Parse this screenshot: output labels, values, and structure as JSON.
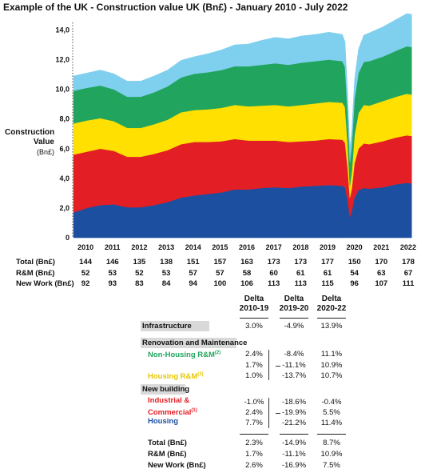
{
  "title": "Example of the UK - Construction value UK (Bn£) - January 2010 - July 2022",
  "chart_data": {
    "type": "area",
    "title": "Example of the UK - Construction value UK (Bn£) - January 2010 - July 2022",
    "ylabel": "Construction Value (Bn£)",
    "ylim": [
      0,
      14.4
    ],
    "yticks": [
      "0",
      "2,0",
      "4,0",
      "6,0",
      "8,0",
      "10,0",
      "12,0",
      "14,0"
    ],
    "xticks": [
      "2010",
      "2011",
      "2012",
      "2013",
      "2014",
      "2015",
      "2016",
      "2017",
      "2018",
      "2019",
      "2020",
      "2021",
      "2022"
    ],
    "stacked": true,
    "x": [
      2010.0,
      2010.5,
      2011.0,
      2011.5,
      2012.0,
      2012.5,
      2013.0,
      2013.5,
      2014.0,
      2014.5,
      2015.0,
      2015.5,
      2016.0,
      2016.5,
      2017.0,
      2017.5,
      2018.0,
      2018.5,
      2019.0,
      2019.5,
      2020.0,
      2020.1,
      2020.2,
      2020.28,
      2020.35,
      2020.45,
      2020.6,
      2020.8,
      2021.0,
      2021.5,
      2022.0,
      2022.4,
      2022.58
    ],
    "series": [
      {
        "color": "#1d4fa0",
        "values": [
          1.7,
          2.0,
          2.2,
          2.25,
          2.05,
          2.05,
          2.2,
          2.4,
          2.7,
          2.85,
          2.95,
          3.05,
          3.25,
          3.25,
          3.35,
          3.4,
          3.35,
          3.45,
          3.5,
          3.55,
          3.5,
          3.4,
          2.5,
          1.4,
          1.8,
          2.7,
          3.2,
          3.35,
          3.3,
          3.4,
          3.6,
          3.7,
          3.65
        ]
      },
      {
        "color": "#e31e24",
        "values": [
          3.9,
          3.8,
          3.8,
          3.6,
          3.4,
          3.4,
          3.45,
          3.5,
          3.6,
          3.6,
          3.5,
          3.45,
          3.4,
          3.3,
          3.2,
          3.15,
          3.1,
          3.05,
          3.05,
          3.1,
          3.1,
          3.0,
          2.2,
          1.3,
          1.5,
          2.3,
          2.8,
          3.0,
          3.0,
          3.1,
          3.15,
          3.2,
          3.2
        ]
      },
      {
        "color": "#ffe000",
        "values": [
          2.1,
          2.1,
          2.05,
          2.0,
          1.95,
          1.95,
          2.0,
          2.05,
          2.15,
          2.15,
          2.2,
          2.25,
          2.3,
          2.3,
          2.35,
          2.4,
          2.4,
          2.45,
          2.5,
          2.5,
          2.5,
          2.4,
          1.6,
          0.8,
          1.1,
          1.9,
          2.4,
          2.6,
          2.6,
          2.7,
          2.75,
          2.8,
          2.8
        ]
      },
      {
        "color": "#21a55e",
        "values": [
          2.2,
          2.2,
          2.2,
          2.15,
          2.1,
          2.1,
          2.15,
          2.25,
          2.35,
          2.45,
          2.5,
          2.55,
          2.6,
          2.7,
          2.75,
          2.8,
          2.8,
          2.85,
          2.85,
          2.85,
          2.8,
          2.7,
          2.1,
          1.6,
          1.8,
          2.4,
          2.7,
          2.9,
          3.0,
          3.0,
          3.1,
          3.2,
          3.2
        ]
      },
      {
        "color": "#7fcfee",
        "values": [
          1.0,
          1.0,
          1.05,
          1.05,
          1.05,
          1.05,
          1.1,
          1.1,
          1.15,
          1.15,
          1.25,
          1.35,
          1.45,
          1.5,
          1.65,
          1.75,
          1.75,
          1.8,
          1.8,
          1.85,
          1.8,
          1.7,
          1.3,
          0.9,
          1.0,
          1.3,
          1.6,
          1.8,
          1.9,
          2.0,
          2.1,
          2.2,
          2.2
        ]
      }
    ],
    "summary_columns": [
      "2010",
      "2011",
      "2012",
      "2013",
      "2014",
      "2015",
      "2016",
      "2017",
      "2018",
      "2019",
      "2020",
      "2021",
      "2022"
    ],
    "summary_rows": [
      {
        "label": "Total (Bn£)",
        "values": [
          "144",
          "146",
          "135",
          "138",
          "151",
          "157",
          "163",
          "173",
          "173",
          "177",
          "150",
          "170",
          "178"
        ]
      },
      {
        "label": "R&M (Bn£)",
        "values": [
          "52",
          "53",
          "52",
          "53",
          "57",
          "57",
          "58",
          "60",
          "61",
          "61",
          "54",
          "63",
          "67"
        ]
      },
      {
        "label": "New Work (Bn£)",
        "values": [
          "92",
          "93",
          "83",
          "84",
          "94",
          "100",
          "106",
          "113",
          "113",
          "115",
          "96",
          "107",
          "111"
        ]
      }
    ]
  },
  "ylabel_line1": "Construction",
  "ylabel_line2": "Value",
  "ylabel_unit": "(Bn£)",
  "delta_table": {
    "headers": [
      {
        "line1": "Delta",
        "line2": "2010-19"
      },
      {
        "line1": "Delta",
        "line2": "2019-20"
      },
      {
        "line1": "Delta",
        "line2": "2020-22"
      }
    ],
    "infrastructure": {
      "label": "Infrastructure",
      "values": [
        "3.0%",
        "-4.9%",
        "13.9%"
      ]
    },
    "renovation_label": "Renovation and Maintenance",
    "non_housing": {
      "label": "Non-Housing R&M",
      "sup": "(2)",
      "values": [
        "2.4%",
        "-8.4%",
        "11.1%"
      ]
    },
    "renovation_total": {
      "values": [
        "1.7%",
        "-11.1%",
        "10.9%"
      ]
    },
    "housing_rm": {
      "label": "Housing R&M",
      "sup": "(3)",
      "values": [
        "1.0%",
        "-13.7%",
        "10.7%"
      ]
    },
    "new_building_label": "New building",
    "industrial": {
      "label_line1": "Industrial &",
      "label_line2": "Commercial",
      "sup": "(1)",
      "values": [
        "-1.0%",
        "-18.6%",
        "-0.4%"
      ]
    },
    "new_total": {
      "values": [
        "2.4%",
        "-19.9%",
        "5.5%"
      ]
    },
    "housing": {
      "label": "Housing",
      "values": [
        "7.7%",
        "-21.2%",
        "11.4%"
      ]
    },
    "totals": [
      {
        "label": "Total (Bn£)",
        "values": [
          "2.3%",
          "-14.9%",
          "8.7%"
        ]
      },
      {
        "label": "R&M (Bn£)",
        "values": [
          "1.7%",
          "-11.1%",
          "10.9%"
        ]
      },
      {
        "label": "New Work (Bn£)",
        "values": [
          "2.6%",
          "-16.9%",
          "7.5%"
        ]
      }
    ],
    "colors": {
      "non_housing": "#21a55e",
      "housing_rm": "#e6c800",
      "industrial": "#e31e24",
      "housing": "#1d4fa0"
    }
  }
}
